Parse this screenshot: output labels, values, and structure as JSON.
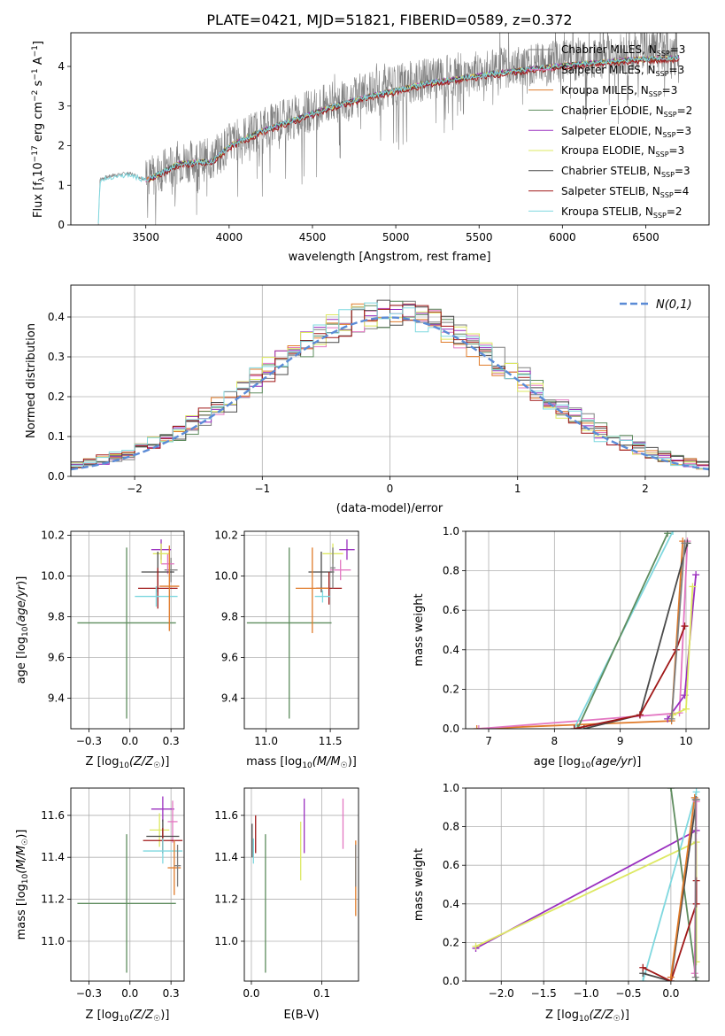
{
  "figure_title": "PLATE=0421, MJD=51821, FIBERID=0589, z=0.372",
  "models": [
    {
      "name": "Chabrier MILES",
      "nssp": "3",
      "color": "#7f7f7f"
    },
    {
      "name": "Salpeter MILES",
      "nssp": "3",
      "color": "#e377c2"
    },
    {
      "name": "Kroupa MILES",
      "nssp": "3",
      "color": "#e07b2a"
    },
    {
      "name": "Chabrier ELODIE",
      "nssp": "2",
      "color": "#5e8c5e"
    },
    {
      "name": "Salpeter ELODIE",
      "nssp": "3",
      "color": "#9a2fbf"
    },
    {
      "name": "Kroupa ELODIE",
      "nssp": "3",
      "color": "#dde862"
    },
    {
      "name": "Chabrier STELIB",
      "nssp": "3",
      "color": "#4a4a4a"
    },
    {
      "name": "Salpeter STELIB",
      "nssp": "4",
      "color": "#a01818"
    },
    {
      "name": "Kroupa STELIB",
      "nssp": "2",
      "color": "#7fd8df"
    }
  ],
  "nssp_label": "N",
  "nssp_sub": "SSP",
  "chart_data": [
    {
      "id": "spectrum",
      "type": "line",
      "xlabel": "wavelength [Angstrom, rest frame]",
      "ylabel": "Flux [f_λ 10^-17 erg cm^-2 s^-1 A^-1]",
      "xlim": [
        3050,
        6880
      ],
      "ylim": [
        0,
        4.85
      ],
      "xticks": [
        3500,
        4000,
        4500,
        5000,
        5500,
        6000,
        6500
      ],
      "yticks": [
        0,
        1,
        2,
        3,
        4
      ],
      "continuum": [
        [
          3215,
          0
        ],
        [
          3225,
          1.15
        ],
        [
          3300,
          1.25
        ],
        [
          3400,
          1.3
        ],
        [
          3500,
          1.15
        ],
        [
          3700,
          1.6
        ],
        [
          3900,
          1.65
        ],
        [
          4000,
          2.05
        ],
        [
          4200,
          2.45
        ],
        [
          4400,
          2.75
        ],
        [
          4600,
          3.05
        ],
        [
          4800,
          3.3
        ],
        [
          5000,
          3.5
        ],
        [
          5200,
          3.7
        ],
        [
          5400,
          3.82
        ],
        [
          5600,
          3.95
        ],
        [
          5800,
          4.05
        ],
        [
          6000,
          4.15
        ],
        [
          6200,
          4.22
        ],
        [
          6400,
          4.3
        ],
        [
          6700,
          4.35
        ]
      ],
      "grid": false
    },
    {
      "id": "residuals",
      "type": "line",
      "xlabel": "(data-model)/error",
      "ylabel": "Normed distribution",
      "xlim": [
        -2.5,
        2.5
      ],
      "ylim": [
        0,
        0.48
      ],
      "xticks": [
        -2,
        -1,
        0,
        1,
        2
      ],
      "yticks": [
        0.0,
        0.1,
        0.2,
        0.3,
        0.4
      ],
      "reference_label": "N(0,1)",
      "reference_color": "#5b8bd6",
      "legend_position": "top-right",
      "grid": true
    },
    {
      "id": "age-vs-Z",
      "type": "scatter",
      "xlabel": "Z [log10(Z/Z☉)]",
      "ylabel": "age [log10(age/yr)]",
      "xlim": [
        -0.36,
        0.33
      ],
      "ylim": [
        9.25,
        10.22
      ],
      "xticks": [
        -0.25,
        0.0,
        0.25
      ],
      "yticks": [
        9.4,
        9.6,
        9.8,
        10.0,
        10.2
      ],
      "points": [
        {
          "m": 3,
          "x": -0.02,
          "xe": [
            0.3,
            0.3
          ],
          "y": 9.77,
          "ye": [
            0.47,
            0.37
          ]
        },
        {
          "m": 0,
          "x": 0.25,
          "xe": [
            0.04,
            0.04
          ],
          "y": 10.03,
          "ye": [
            0.06,
            0.06
          ]
        },
        {
          "m": 1,
          "x": 0.23,
          "xe": [
            0.04,
            0.04
          ],
          "y": 10.06,
          "ye": [
            0.05,
            0.05
          ]
        },
        {
          "m": 4,
          "x": 0.19,
          "xe": [
            0.06,
            0.06
          ],
          "y": 10.13,
          "ye": [
            0.05,
            0.05
          ]
        },
        {
          "m": 5,
          "x": 0.19,
          "xe": [
            0.05,
            0.05
          ],
          "y": 10.11,
          "ye": [
            0.05,
            0.05
          ]
        },
        {
          "m": 6,
          "x": 0.17,
          "xe": [
            0.1,
            0.1
          ],
          "y": 10.02,
          "ye": [
            0.1,
            0.1
          ]
        },
        {
          "m": 7,
          "x": 0.17,
          "xe": [
            0.12,
            0.12
          ],
          "y": 9.94,
          "ye": [
            0.1,
            0.1
          ]
        },
        {
          "m": 8,
          "x": 0.16,
          "xe": [
            0.13,
            0.13
          ],
          "y": 9.9,
          "ye": [
            0.05,
            0.05
          ]
        },
        {
          "m": 2,
          "x": 0.24,
          "xe": [
            0.06,
            0.06
          ],
          "y": 9.95,
          "ye": [
            0.22,
            0.2
          ]
        }
      ],
      "grid": true
    },
    {
      "id": "age-vs-mass",
      "type": "scatter",
      "xlabel": "mass [log10(M/M☉)]",
      "ylabel": "",
      "xlim": [
        10.83,
        11.72
      ],
      "ylim": [
        9.25,
        10.22
      ],
      "xticks": [
        11.0,
        11.5
      ],
      "yticks": [
        9.4,
        9.6,
        9.8,
        10.0,
        10.2
      ],
      "points": [
        {
          "m": 3,
          "x": 11.18,
          "xe": [
            0.33,
            0.33
          ],
          "y": 9.77,
          "ye": [
            0.47,
            0.37
          ]
        },
        {
          "m": 4,
          "x": 11.63,
          "xe": [
            0.06,
            0.06
          ],
          "y": 10.13,
          "ye": [
            0.05,
            0.05
          ]
        },
        {
          "m": 5,
          "x": 11.52,
          "xe": [
            0.08,
            0.08
          ],
          "y": 10.11,
          "ye": [
            0.05,
            0.05
          ]
        },
        {
          "m": 1,
          "x": 11.58,
          "xe": [
            0.08,
            0.08
          ],
          "y": 10.03,
          "ye": [
            0.05,
            0.05
          ]
        },
        {
          "m": 6,
          "x": 11.43,
          "xe": [
            0.1,
            0.1
          ],
          "y": 10.02,
          "ye": [
            0.1,
            0.1
          ]
        },
        {
          "m": 7,
          "x": 11.49,
          "xe": [
            0.1,
            0.1
          ],
          "y": 9.94,
          "ye": [
            0.08,
            0.08
          ]
        },
        {
          "m": 2,
          "x": 11.36,
          "xe": [
            0.13,
            0.13
          ],
          "y": 9.94,
          "ye": [
            0.22,
            0.2
          ]
        },
        {
          "m": 8,
          "x": 11.44,
          "xe": [
            0.06,
            0.06
          ],
          "y": 9.9,
          "ye": [
            0.03,
            0.03
          ]
        },
        {
          "m": 0,
          "x": 11.52,
          "xe": [
            0.02,
            0.02
          ],
          "y": 10.04,
          "ye": [
            0.1,
            0.1
          ]
        }
      ],
      "grid": true
    },
    {
      "id": "massweight-vs-age",
      "type": "line",
      "xlabel": "age [log10(age/yr)]",
      "ylabel": "mass weight",
      "xlim": [
        6.65,
        10.35
      ],
      "ylim": [
        0,
        1.0
      ],
      "xticks": [
        7,
        8,
        9,
        10
      ],
      "yticks": [
        0.0,
        0.2,
        0.4,
        0.6,
        0.8,
        1.0
      ],
      "series": [
        {
          "m": 2,
          "points": [
            [
              6.82,
              0.0
            ],
            [
              9.78,
              0.04
            ],
            [
              9.95,
              0.95
            ]
          ]
        },
        {
          "m": 1,
          "points": [
            [
              6.85,
              0.0
            ],
            [
              9.9,
              0.08
            ],
            [
              10.02,
              0.95
            ]
          ]
        },
        {
          "m": 8,
          "points": [
            [
              8.3,
              0.0
            ],
            [
              9.8,
              1.0
            ]
          ]
        },
        {
          "m": 3,
          "points": [
            [
              8.35,
              0.0
            ],
            [
              9.72,
              0.99
            ]
          ]
        },
        {
          "m": 6,
          "points": [
            [
              8.45,
              0.0
            ],
            [
              9.3,
              0.07
            ],
            [
              10.02,
              0.94
            ]
          ]
        },
        {
          "m": 7,
          "points": [
            [
              8.3,
              0.0
            ],
            [
              9.3,
              0.07
            ],
            [
              9.85,
              0.4
            ],
            [
              9.98,
              0.52
            ]
          ]
        },
        {
          "m": 4,
          "points": [
            [
              9.72,
              0.05
            ],
            [
              9.98,
              0.17
            ],
            [
              10.15,
              0.78
            ]
          ]
        },
        {
          "m": 5,
          "points": [
            [
              9.8,
              0.07
            ],
            [
              10.0,
              0.1
            ],
            [
              10.1,
              0.72
            ]
          ]
        },
        {
          "m": 0,
          "points": [
            [
              9.78,
              0.05
            ],
            [
              9.98,
              0.94
            ]
          ]
        }
      ],
      "grid": true
    },
    {
      "id": "mass-vs-Z",
      "type": "scatter",
      "xlabel": "Z [log10(Z/Z☉)]",
      "ylabel": "mass [log10(M/M☉)]",
      "xlim": [
        -0.36,
        0.33
      ],
      "ylim": [
        10.81,
        11.73
      ],
      "xticks": [
        -0.25,
        0.0,
        0.25
      ],
      "yticks": [
        11.0,
        11.2,
        11.4,
        11.6
      ],
      "points": [
        {
          "m": 3,
          "x": -0.02,
          "xe": [
            0.3,
            0.3
          ],
          "y": 11.18,
          "ye": [
            0.33,
            0.33
          ]
        },
        {
          "m": 4,
          "x": 0.2,
          "xe": [
            0.07,
            0.07
          ],
          "y": 11.63,
          "ye": [
            0.06,
            0.06
          ]
        },
        {
          "m": 5,
          "x": 0.18,
          "xe": [
            0.06,
            0.06
          ],
          "y": 11.53,
          "ye": [
            0.08,
            0.08
          ]
        },
        {
          "m": 1,
          "x": 0.26,
          "xe": [
            0.03,
            0.03
          ],
          "y": 11.57,
          "ye": [
            0.1,
            0.1
          ]
        },
        {
          "m": 6,
          "x": 0.2,
          "xe": [
            0.1,
            0.1
          ],
          "y": 11.5,
          "ye": [
            0.08,
            0.08
          ]
        },
        {
          "m": 7,
          "x": 0.2,
          "xe": [
            0.12,
            0.12
          ],
          "y": 11.48,
          "ye": [
            0.06,
            0.06
          ]
        },
        {
          "m": 8,
          "x": 0.2,
          "xe": [
            0.12,
            0.12
          ],
          "y": 11.43,
          "ye": [
            0.06,
            0.06
          ]
        },
        {
          "m": 2,
          "x": 0.27,
          "xe": [
            0.04,
            0.04
          ],
          "y": 11.35,
          "ye": [
            0.13,
            0.13
          ]
        },
        {
          "m": 0,
          "x": 0.29,
          "xe": [
            0.02,
            0.02
          ],
          "y": 11.36,
          "ye": [
            0.1,
            0.1
          ]
        }
      ],
      "grid": true
    },
    {
      "id": "mass-vs-EBV",
      "type": "scatter",
      "xlabel": "E(B-V)",
      "ylabel": "",
      "xlim": [
        -0.01,
        0.152
      ],
      "ylim": [
        10.81,
        11.73
      ],
      "xticks": [
        0.0,
        0.1
      ],
      "yticks": [
        11.0,
        11.2,
        11.4,
        11.6
      ],
      "points": [
        {
          "m": 3,
          "x": 0.02,
          "xe": [
            0,
            0
          ],
          "y": 11.18,
          "ye": [
            0.33,
            0.33
          ]
        },
        {
          "m": 4,
          "x": 0.075,
          "xe": [
            0,
            0
          ],
          "y": 11.55,
          "ye": [
            0.13,
            0.13
          ]
        },
        {
          "m": 5,
          "x": 0.07,
          "xe": [
            0,
            0
          ],
          "y": 11.43,
          "ye": [
            0.14,
            0.14
          ]
        },
        {
          "m": 1,
          "x": 0.13,
          "xe": [
            0,
            0
          ],
          "y": 11.56,
          "ye": [
            0.12,
            0.12
          ]
        },
        {
          "m": 6,
          "x": 0.001,
          "xe": [
            0,
            0
          ],
          "y": 11.48,
          "ye": [
            0.08,
            0.08
          ]
        },
        {
          "m": 7,
          "x": 0.006,
          "xe": [
            0,
            0
          ],
          "y": 11.51,
          "ye": [
            0.09,
            0.09
          ]
        },
        {
          "m": 8,
          "x": 0.003,
          "xe": [
            0,
            0
          ],
          "y": 11.43,
          "ye": [
            0.06,
            0.06
          ]
        },
        {
          "m": 2,
          "x": 0.148,
          "xe": [
            0,
            0
          ],
          "y": 11.3,
          "ye": [
            0.18,
            0.18
          ]
        },
        {
          "m": 0,
          "x": 0.148,
          "xe": [
            0,
            0
          ],
          "y": 11.36,
          "ye": [
            0.1,
            0.1
          ]
        }
      ],
      "grid": true
    },
    {
      "id": "massweight-vs-Z",
      "type": "line",
      "xlabel": "Z [log10(Z/Z☉)]",
      "ylabel": "mass weight",
      "xlim": [
        -2.42,
        0.45
      ],
      "ylim": [
        0,
        1.0
      ],
      "xticks": [
        -2.0,
        -1.5,
        -1.0,
        -0.5,
        0.0
      ],
      "yticks": [
        0.0,
        0.2,
        0.4,
        0.6,
        0.8,
        1.0
      ],
      "series": [
        {
          "m": 4,
          "points": [
            [
              -2.3,
              0.17
            ],
            [
              0.3,
              0.78
            ]
          ]
        },
        {
          "m": 5,
          "points": [
            [
              -2.3,
              0.18
            ],
            [
              0.3,
              0.72
            ],
            [
              0.3,
              0.1
            ]
          ]
        },
        {
          "m": 8,
          "points": [
            [
              -0.33,
              0.0
            ],
            [
              0.3,
              0.98
            ]
          ]
        },
        {
          "m": 3,
          "points": [
            [
              0.0,
              1.0
            ],
            [
              0.3,
              0.0
            ]
          ]
        },
        {
          "m": 6,
          "points": [
            [
              -0.33,
              0.04
            ],
            [
              0.0,
              0.0
            ],
            [
              0.3,
              0.94
            ]
          ]
        },
        {
          "m": 7,
          "points": [
            [
              -0.33,
              0.07
            ],
            [
              0.0,
              0.0
            ],
            [
              0.3,
              0.4
            ],
            [
              0.3,
              0.52
            ]
          ]
        },
        {
          "m": 2,
          "points": [
            [
              0.0,
              0.02
            ],
            [
              0.28,
              0.95
            ]
          ]
        },
        {
          "m": 1,
          "points": [
            [
              0.28,
              0.04
            ],
            [
              0.3,
              0.93
            ]
          ]
        },
        {
          "m": 0,
          "points": [
            [
              0.29,
              0.02
            ],
            [
              0.29,
              0.94
            ]
          ]
        }
      ],
      "grid": true
    }
  ]
}
